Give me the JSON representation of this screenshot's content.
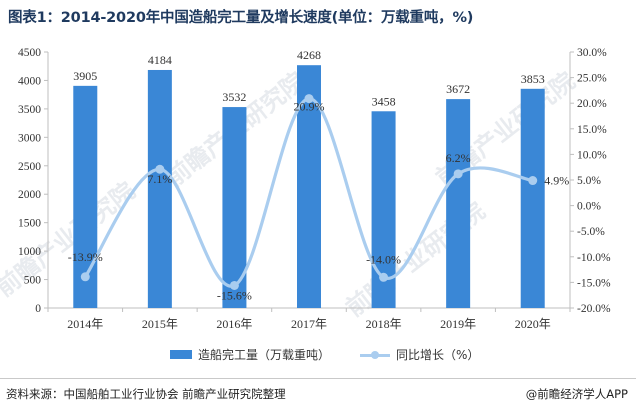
{
  "title": "图表1：2014-2020年中国造船完工量及增长速度(单位：万载重吨，%)",
  "source": "资料来源：中国船舶工业行业协会 前瞻产业研究院整理",
  "brand": "@前瞻经济学人APP",
  "watermark": "前瞻产业研究院",
  "colors": {
    "bar": "#3a87d6",
    "line": "#aacdef",
    "title": "#1f3a5f"
  },
  "chart_data": {
    "type": "bar",
    "title": "图表1：2014-2020年中国造船完工量及增长速度(单位：万载重吨，%)",
    "categories": [
      "2014年",
      "2015年",
      "2016年",
      "2017年",
      "2018年",
      "2019年",
      "2020年"
    ],
    "series": [
      {
        "name": "造船完工量（万载重吨）",
        "type": "bar",
        "axis": "left",
        "values": [
          3905,
          4184,
          3532,
          4268,
          3458,
          3672,
          3853
        ],
        "labels": [
          "3905",
          "4184",
          "3532",
          "4268",
          "3458",
          "3672",
          "3853"
        ]
      },
      {
        "name": "同比增长（%）",
        "type": "line",
        "axis": "right",
        "smooth": true,
        "values": [
          -13.9,
          7.1,
          -15.6,
          20.9,
          -14.0,
          6.2,
          4.9
        ],
        "labels": [
          "-13.9%",
          "7.1%",
          "-15.6%",
          "20.9%",
          "-14.0%",
          "6.2%",
          "4.9%"
        ]
      }
    ],
    "y_left": {
      "min": 0,
      "max": 4500,
      "step": 500,
      "ticks": [
        "0",
        "500",
        "1000",
        "1500",
        "2000",
        "2500",
        "3000",
        "3500",
        "4000",
        "4500"
      ]
    },
    "y_right": {
      "min": -20,
      "max": 30,
      "step": 5,
      "ticks": [
        "-20.0%",
        "-15.0%",
        "-10.0%",
        "-5.0%",
        "0.0%",
        "5.0%",
        "10.0%",
        "15.0%",
        "20.0%",
        "25.0%",
        "30.0%"
      ]
    },
    "legend": [
      "造船完工量（万载重吨）",
      "同比增长（%）"
    ],
    "legend_position": "bottom",
    "grid": false
  }
}
